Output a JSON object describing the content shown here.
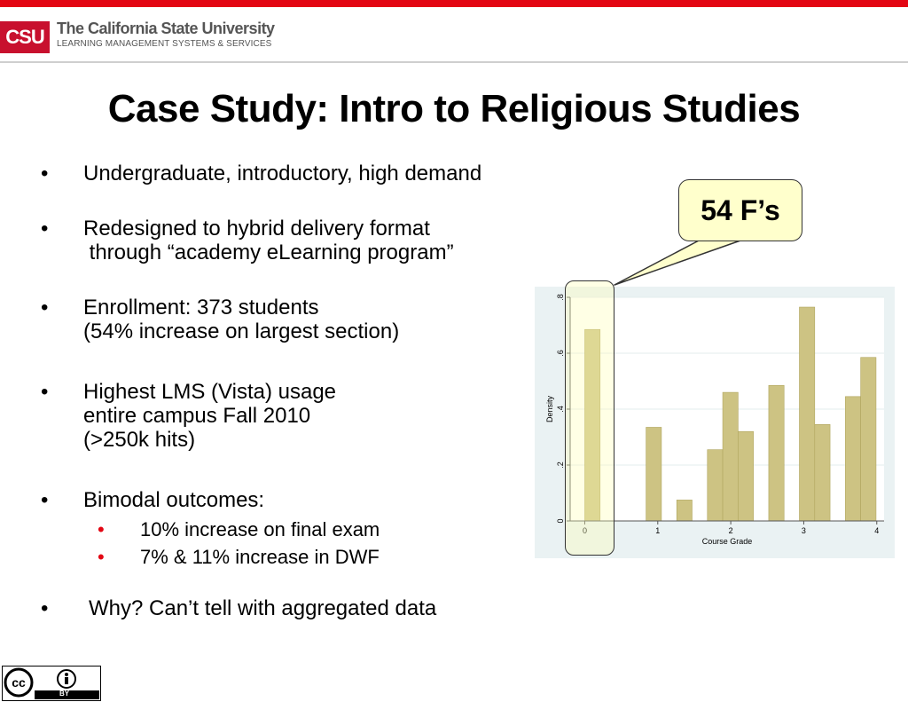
{
  "header": {
    "logo_text": "CSU",
    "university_name": "The California State University",
    "department": "LEARNING MANAGEMENT SYSTEMS & SERVICES"
  },
  "slide": {
    "title": "Case Study: Intro to Religious Studies",
    "bullets": [
      {
        "lines": [
          "Undergraduate, introductory, high demand"
        ]
      },
      {
        "lines": [
          "Redesigned to hybrid delivery format",
          " through “academy eLearning program”"
        ]
      },
      {
        "lines": [
          "Enrollment: 373 students",
          "(54% increase on largest section)"
        ]
      },
      {
        "lines": [
          "Highest LMS (Vista) usage",
          "entire campus Fall 2010",
          "(>250k hits)"
        ]
      },
      {
        "lines": [
          "Bimodal outcomes:"
        ]
      },
      {
        "lines": [
          "Why?  Can’t tell with aggregated data"
        ]
      }
    ],
    "sub_bullets": [
      "10% increase on final exam",
      "7% & 11% increase in DWF"
    ],
    "callout": "54 F’s"
  },
  "license": {
    "label": "BY",
    "icon": "creative-commons-by-icon"
  },
  "colors": {
    "accent": "#e30613",
    "bar_fill": "#cdc383",
    "bar_stroke": "#b0a55e",
    "plot_bg": "#eaf2f3",
    "callout_bg": "#ffffcc"
  },
  "chart_data": {
    "type": "bar",
    "xlabel": "Course Grade",
    "ylabel": "Density",
    "xlim": [
      -0.2,
      4.1
    ],
    "ylim": [
      0,
      0.8
    ],
    "xticks": [
      0,
      1,
      2,
      3,
      4
    ],
    "xtick_labels": [
      "0",
      "1",
      "2",
      "3",
      "4"
    ],
    "yticks": [
      0,
      0.2,
      0.4,
      0.6,
      0.8
    ],
    "ytick_labels": [
      "0",
      ".2",
      ".4",
      ".6",
      ".8"
    ],
    "bin_width": 0.21,
    "bars": [
      {
        "x": 0.0,
        "value": 0.685
      },
      {
        "x": 0.84,
        "value": 0.335
      },
      {
        "x": 1.26,
        "value": 0.075
      },
      {
        "x": 1.68,
        "value": 0.255
      },
      {
        "x": 1.89,
        "value": 0.46
      },
      {
        "x": 2.1,
        "value": 0.32
      },
      {
        "x": 2.52,
        "value": 0.485
      },
      {
        "x": 2.94,
        "value": 0.765
      },
      {
        "x": 3.15,
        "value": 0.345
      },
      {
        "x": 3.57,
        "value": 0.445
      },
      {
        "x": 3.78,
        "value": 0.585
      }
    ],
    "grid": true
  }
}
